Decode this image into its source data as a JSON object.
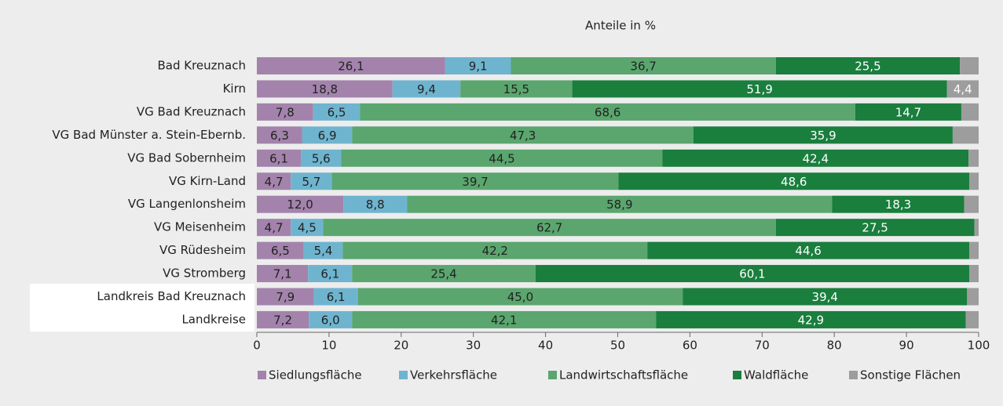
{
  "chart_data": {
    "type": "stacked_barh",
    "title": "Anteile in %",
    "categories": [
      "Bad Kreuznach",
      "Kirn",
      "VG Bad Kreuznach",
      "VG Bad Münster a. Stein-Ebernb.",
      "VG Bad Sobernheim",
      "VG Kirn-Land",
      "VG Langenlonsheim",
      "VG Meisenheim",
      "VG Rüdesheim",
      "VG Stromberg",
      "Landkreis Bad Kreuznach",
      "Landkreise"
    ],
    "series": [
      {
        "name": "Siedlungsfläche",
        "color": "#a383ac",
        "values": [
          26.1,
          18.8,
          7.8,
          6.3,
          6.1,
          4.7,
          12.0,
          4.7,
          6.5,
          7.1,
          7.9,
          7.2
        ],
        "value_labels": [
          "26,1",
          "18,8",
          "7,8",
          "6,3",
          "6,1",
          "4,7",
          "12,0",
          "4,7",
          "6,5",
          "7,1",
          "7,9",
          "7,2"
        ]
      },
      {
        "name": "Verkehrsfläche",
        "color": "#6fb4cf",
        "values": [
          9.1,
          9.4,
          6.5,
          6.9,
          5.6,
          5.7,
          8.8,
          4.5,
          5.4,
          6.1,
          6.1,
          6.0
        ],
        "value_labels": [
          "9,1",
          "9,4",
          "6,5",
          "6,9",
          "5,6",
          "5,7",
          "8,8",
          "4,5",
          "5,4",
          "6,1",
          "6,1",
          "6,0"
        ]
      },
      {
        "name": "Landwirtschaftsfläche",
        "color": "#5aa66e",
        "values": [
          36.7,
          15.5,
          68.6,
          47.3,
          44.5,
          39.7,
          58.9,
          62.7,
          42.2,
          25.4,
          45.0,
          42.1
        ],
        "value_labels": [
          "36,7",
          "15,5",
          "68,6",
          "47,3",
          "44,5",
          "39,7",
          "58,9",
          "62,7",
          "42,2",
          "25,4",
          "45,0",
          "42,1"
        ]
      },
      {
        "name": "Waldfläche",
        "color": "#1a7e3d",
        "values": [
          25.5,
          51.9,
          14.7,
          35.9,
          42.4,
          48.6,
          18.3,
          27.5,
          44.6,
          60.1,
          39.4,
          42.9
        ],
        "value_labels": [
          "25,5",
          "51,9",
          "14,7",
          "35,9",
          "42,4",
          "48,6",
          "18,3",
          "27,5",
          "44,6",
          "60,1",
          "39,4",
          "42,9"
        ]
      },
      {
        "name": "Sonstige Flächen",
        "color": "#9d9d9d",
        "values": [
          2.6,
          4.4,
          2.4,
          3.6,
          1.4,
          1.3,
          2.0,
          0.6,
          1.3,
          1.3,
          1.6,
          1.8
        ],
        "value_labels": [
          null,
          "4,4",
          null,
          null,
          null,
          null,
          null,
          null,
          null,
          null,
          null,
          null
        ]
      }
    ],
    "xlim": [
      0,
      100
    ],
    "xticks": [
      0,
      10,
      20,
      30,
      40,
      50,
      60,
      70,
      80,
      90,
      100
    ],
    "grid": false,
    "legend": "bottom"
  }
}
